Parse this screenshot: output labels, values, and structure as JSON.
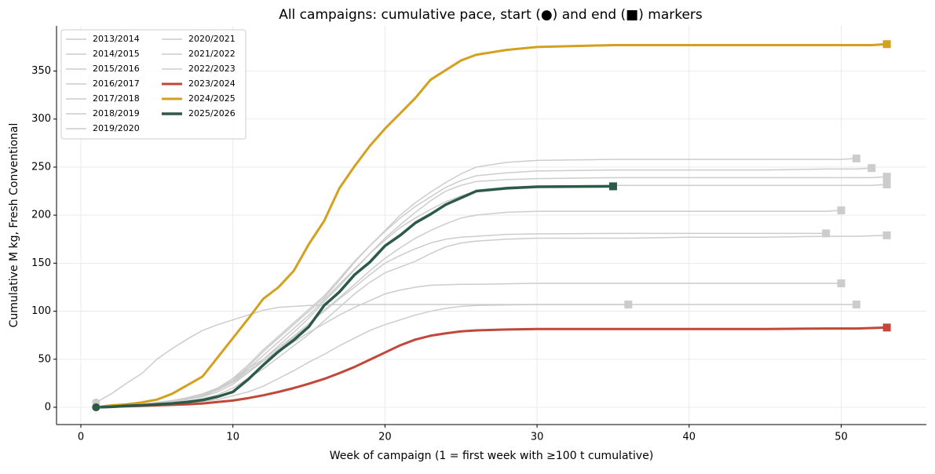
{
  "chart_data": {
    "type": "line",
    "title": "All campaigns: cumulative pace, start (●) and end (■) markers",
    "xlabel": "Week of campaign (1 = first week with ≥100 t cumulative)",
    "ylabel": "Cumulative M kg, Fresh Conventional",
    "xlim": [
      -1.6,
      55.6
    ],
    "ylim": [
      -18,
      397
    ],
    "xticks": [
      0,
      10,
      20,
      30,
      40,
      50
    ],
    "yticks": [
      0,
      50,
      100,
      150,
      200,
      250,
      300,
      350
    ],
    "grid": true,
    "legend": "upper left",
    "x": [
      1,
      2,
      3,
      4,
      5,
      6,
      7,
      8,
      9,
      10,
      11,
      12,
      13,
      14,
      15,
      16,
      17,
      18,
      19,
      20,
      21,
      22,
      23,
      24,
      25,
      26,
      28,
      30,
      35,
      36,
      40,
      45,
      49,
      50,
      51,
      52,
      53
    ],
    "series": [
      {
        "name": "2013/2014",
        "color": "#cccccc",
        "linewidth": 1.5,
        "values": [
          5,
          14,
          25,
          35,
          50,
          61,
          71,
          80,
          86,
          91,
          96,
          101,
          104,
          105,
          106,
          106.5,
          107,
          107,
          107,
          107,
          107,
          107,
          107,
          107,
          107,
          107,
          107,
          107,
          107,
          107,
          107,
          107,
          107,
          107,
          107,
          null,
          null
        ]
      },
      {
        "name": "2014/2015",
        "color": "#cccccc",
        "linewidth": 1.5,
        "values": [
          0,
          0.5,
          1,
          1.5,
          2,
          3,
          4,
          6,
          8,
          12,
          16,
          22,
          30,
          38,
          47,
          55,
          64,
          72,
          80,
          86,
          91,
          96,
          100,
          103,
          105,
          106,
          106.5,
          107,
          107,
          107,
          null,
          null,
          null,
          null,
          null,
          null,
          null
        ]
      },
      {
        "name": "2015/2016",
        "color": "#cccccc",
        "linewidth": 1.5,
        "values": [
          0,
          1,
          2,
          3,
          4,
          6,
          9,
          13,
          19,
          28,
          42,
          58,
          72,
          86,
          100,
          114,
          132,
          151,
          168,
          184,
          200,
          213,
          224,
          234,
          243,
          250,
          255,
          257,
          258,
          258,
          258,
          258,
          258,
          258,
          259,
          null,
          null
        ]
      },
      {
        "name": "2016/2017",
        "color": "#cccccc",
        "linewidth": 1.5,
        "values": [
          0,
          1,
          2,
          3,
          5,
          7,
          10,
          14,
          20,
          30,
          44,
          60,
          74,
          88,
          102,
          116,
          134,
          152,
          168,
          183,
          197,
          209,
          219,
          229,
          236,
          241,
          244,
          246,
          247,
          247,
          247,
          247,
          248,
          248,
          248,
          249,
          null
        ]
      },
      {
        "name": "2017/2018",
        "color": "#cccccc",
        "linewidth": 1.5,
        "values": [
          0,
          1,
          2,
          3,
          4,
          6,
          8,
          11,
          16,
          24,
          36,
          50,
          64,
          78,
          93,
          110,
          126,
          143,
          160,
          176,
          190,
          203,
          215,
          225,
          231,
          235,
          237,
          238,
          239,
          239,
          239,
          239,
          239,
          239,
          239,
          239,
          240
        ]
      },
      {
        "name": "2018/2019",
        "color": "#cccccc",
        "linewidth": 1.5,
        "values": [
          0,
          1,
          2,
          3,
          5,
          7,
          9,
          12,
          18,
          27,
          40,
          54,
          68,
          82,
          96,
          112,
          128,
          144,
          160,
          174,
          187,
          197,
          206,
          214,
          220,
          225,
          229,
          230,
          231,
          231,
          231,
          231,
          231,
          231,
          231,
          231,
          232
        ]
      },
      {
        "name": "2019/2020",
        "color": "#cccccc",
        "linewidth": 1.5,
        "values": [
          0,
          1,
          2,
          3,
          4,
          6,
          8,
          12,
          18,
          26,
          36,
          48,
          60,
          73,
          87,
          101,
          114,
          128,
          142,
          155,
          166,
          176,
          184,
          191,
          197,
          200,
          203,
          204,
          204,
          204,
          204,
          204,
          204,
          205,
          null,
          null,
          null
        ]
      },
      {
        "name": "2020/2021",
        "color": "#cccccc",
        "linewidth": 1.5,
        "values": [
          0,
          1,
          2,
          3,
          4,
          6,
          9,
          13,
          20,
          30,
          40,
          50,
          62,
          74,
          87,
          100,
          113,
          125,
          138,
          150,
          158,
          165,
          171,
          175,
          177,
          178,
          180,
          180.5,
          181,
          181,
          181,
          181,
          181,
          null,
          null,
          null,
          null
        ]
      },
      {
        "name": "2021/2022",
        "color": "#cccccc",
        "linewidth": 1.5,
        "values": [
          0,
          0.5,
          1,
          2,
          3,
          4,
          6,
          9,
          13,
          20,
          30,
          40,
          52,
          64,
          76,
          90,
          104,
          118,
          130,
          140,
          146,
          152,
          160,
          167,
          171,
          173,
          175,
          176,
          176,
          176,
          177,
          177,
          178,
          178,
          178,
          178.5,
          179
        ]
      },
      {
        "name": "2022/2023",
        "color": "#cccccc",
        "linewidth": 1.5,
        "values": [
          0,
          1,
          2,
          3,
          4,
          6,
          8,
          12,
          18,
          27,
          38,
          48,
          58,
          68,
          78,
          87,
          96,
          104,
          111,
          118,
          122,
          125,
          127,
          127.5,
          128,
          128,
          128.5,
          129,
          129,
          129,
          129,
          129,
          129,
          129,
          null,
          null,
          null
        ]
      },
      {
        "name": "2023/2024",
        "color": "#c0473a",
        "linewidth": 3,
        "values": [
          0,
          0.5,
          1,
          1.5,
          2,
          2.5,
          3,
          4,
          5.5,
          7,
          9.5,
          12.5,
          16,
          20,
          24.5,
          29.5,
          35.5,
          42,
          49.5,
          57,
          64.5,
          70.5,
          74.5,
          77,
          79,
          80,
          81,
          81.5,
          81.5,
          81.5,
          81.5,
          81.5,
          82,
          82,
          82,
          82.5,
          83
        ]
      },
      {
        "name": "2024/2025",
        "color": "#d4a020",
        "linewidth": 3,
        "values": [
          0,
          2,
          3,
          5,
          8,
          14,
          23,
          32,
          52,
          72,
          92,
          113,
          125,
          142,
          170,
          194,
          228,
          251,
          272,
          290,
          306,
          322,
          341,
          351,
          361,
          367,
          372,
          375,
          377,
          377,
          377,
          377,
          377,
          377,
          377,
          377,
          378
        ]
      },
      {
        "name": "2025/2026",
        "color": "#2b5a48",
        "linewidth": 3.5,
        "values": [
          0,
          0.5,
          1.5,
          2,
          3,
          4,
          5.5,
          7.5,
          11,
          16,
          29,
          44,
          58,
          70,
          84,
          106,
          120,
          138,
          151,
          168,
          179,
          192,
          201,
          211,
          218,
          225,
          228,
          229.5,
          230,
          null,
          null,
          null,
          null,
          null,
          null,
          null,
          null
        ]
      }
    ]
  }
}
